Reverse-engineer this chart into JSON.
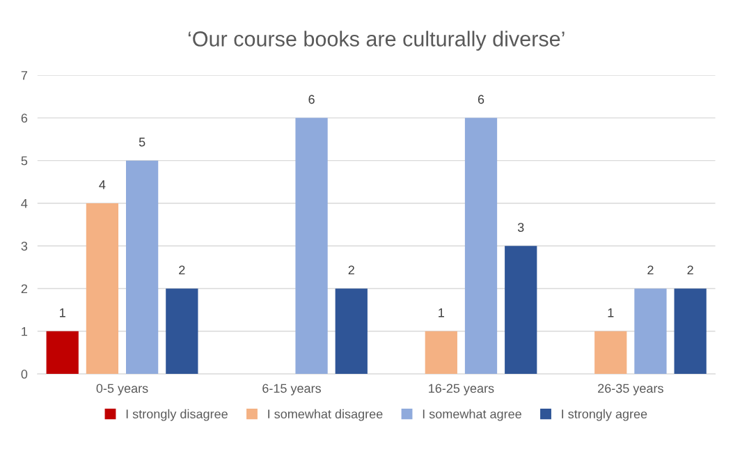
{
  "chart_data": {
    "type": "bar",
    "title": "‘Our course books are culturally diverse’",
    "categories": [
      "0-5 years",
      "6-15 years",
      "16-25 years",
      "26-35 years"
    ],
    "series": [
      {
        "name": "I strongly disagree",
        "color": "#c00000",
        "values": [
          1,
          null,
          null,
          null
        ]
      },
      {
        "name": "I somewhat disagree",
        "color": "#f4b183",
        "values": [
          4,
          null,
          1,
          1
        ]
      },
      {
        "name": "I somewhat agree",
        "color": "#8faadc",
        "values": [
          5,
          6,
          6,
          2
        ]
      },
      {
        "name": "I strongly agree",
        "color": "#2f5597",
        "values": [
          2,
          2,
          3,
          2
        ]
      }
    ],
    "ylim": [
      0,
      7
    ],
    "yticks": [
      0,
      1,
      2,
      3,
      4,
      5,
      6,
      7
    ],
    "grid": "y",
    "legend": "bottom",
    "data_labels": true
  }
}
